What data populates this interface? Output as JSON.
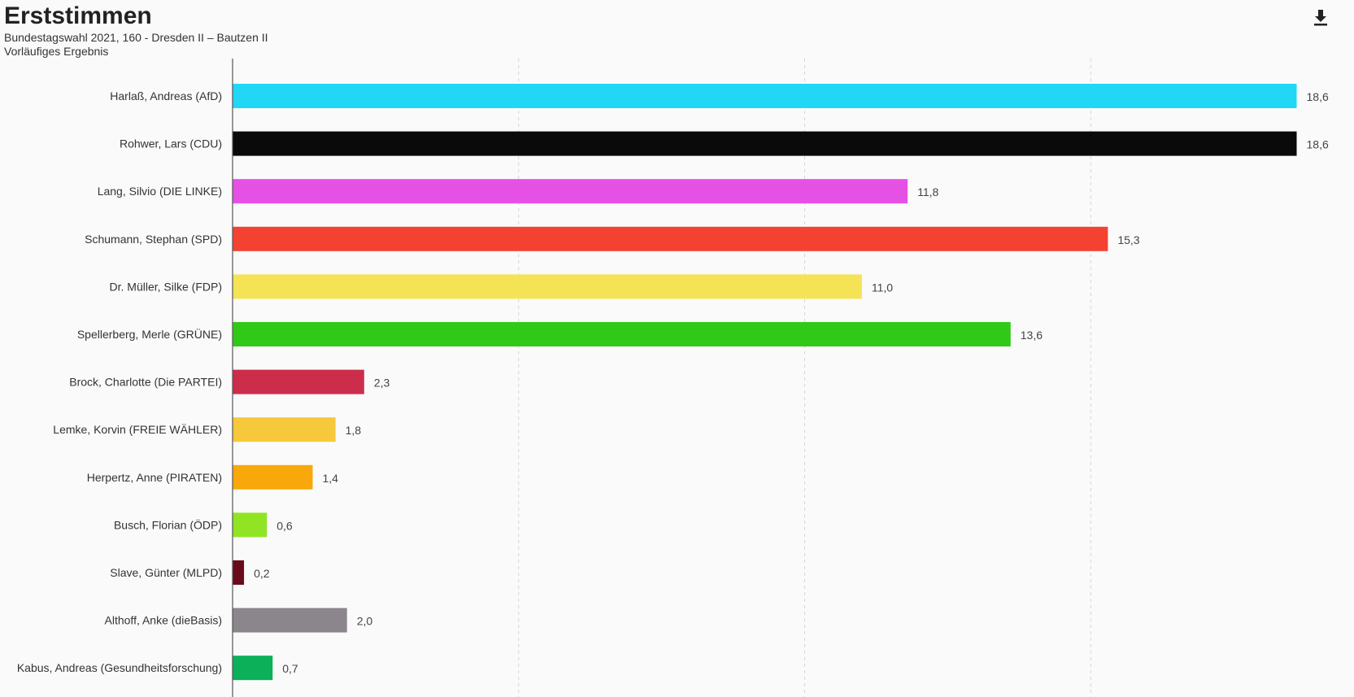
{
  "header": {
    "title": "Erststimmen",
    "subtitle_1": "Bundestagswahl 2021, 160 - Dresden II – Bautzen II",
    "subtitle_2": "Vorläufiges Ergebnis"
  },
  "toolbar": {
    "download_icon": "download-icon"
  },
  "chart_data": {
    "type": "bar",
    "orientation": "horizontal",
    "title": "Erststimmen",
    "subtitle": "Bundestagswahl 2021, 160 - Dresden II – Bautzen II",
    "xlabel": "",
    "ylabel": "",
    "xlim": [
      0,
      20
    ],
    "grid": true,
    "categories": [
      "Harlaß, Andreas (AfD)",
      "Rohwer, Lars (CDU)",
      "Lang, Silvio (DIE LINKE)",
      "Schumann, Stephan (SPD)",
      "Dr. Müller, Silke (FDP)",
      "Spellerberg, Merle (GRÜNE)",
      "Brock, Charlotte (Die PARTEI)",
      "Lemke, Korvin (FREIE WÄHLER)",
      "Herpertz, Anne (PIRATEN)",
      "Busch, Florian (ÖDP)",
      "Slave, Günter (MLPD)",
      "Althoff, Anke (dieBasis)",
      "Kabus, Andreas (Gesundheitsforschung)"
    ],
    "values": [
      18.6,
      18.6,
      11.8,
      15.3,
      11.0,
      13.6,
      2.3,
      1.8,
      1.4,
      0.6,
      0.2,
      2.0,
      0.7
    ],
    "value_labels": [
      "18,6",
      "18,6",
      "11,8",
      "15,3",
      "11,0",
      "13,6",
      "2,3",
      "1,8",
      "1,4",
      "0,6",
      "0,2",
      "2,0",
      "0,7"
    ],
    "colors": [
      "#22d7f5",
      "#0a0a0a",
      "#e551e5",
      "#f44232",
      "#f5e356",
      "#31c918",
      "#cc2d4a",
      "#f5c93b",
      "#f8a80a",
      "#90e424",
      "#6a0b1d",
      "#8b858c",
      "#0cb058"
    ]
  }
}
